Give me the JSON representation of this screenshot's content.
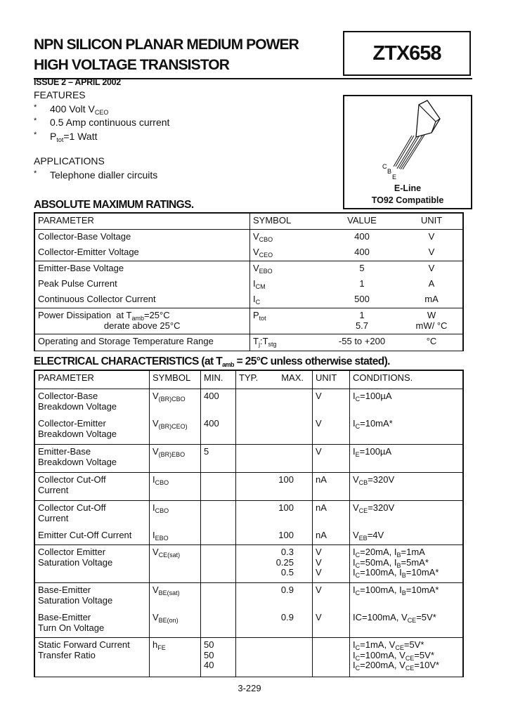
{
  "header": {
    "title_line1": "NPN SILICON PLANAR MEDIUM POWER",
    "title_line2": "HIGH VOLTAGE TRANSISTOR",
    "part_number": "ZTX658",
    "issue": "ISSUE 2 – APRIL 2002"
  },
  "features": {
    "heading": "FEATURES",
    "items": [
      [
        "400 Volt V",
        {
          "sub": "CEO"
        }
      ],
      [
        "0.5 Amp continuous current"
      ],
      [
        "P",
        {
          "sub": "tot"
        },
        "=1 Watt"
      ]
    ]
  },
  "applications": {
    "heading": "APPLICATIONS",
    "items": [
      [
        "Telephone dialler circuits"
      ]
    ]
  },
  "package": {
    "pin_labels": [
      "C",
      "B",
      "E"
    ],
    "name": "E-Line",
    "compat": "TO92 Compatible"
  },
  "abs_max": {
    "heading": "ABSOLUTE MAXIMUM RATINGS.",
    "columns": [
      "PARAMETER",
      "SYMBOL",
      "VALUE",
      "UNIT"
    ],
    "groups": [
      [
        {
          "parameter": [
            "Collector-Base Voltage"
          ],
          "symbol": [
            [
              "V",
              {
                "sub": "CBO"
              }
            ]
          ],
          "value": [
            "400"
          ],
          "unit": [
            "V"
          ]
        },
        {
          "parameter": [
            "Collector-Emitter Voltage"
          ],
          "symbol": [
            [
              "V",
              {
                "sub": "CEO"
              }
            ]
          ],
          "value": [
            "400"
          ],
          "unit": [
            "V"
          ]
        }
      ],
      [
        {
          "parameter": [
            "Emitter-Base Voltage"
          ],
          "symbol": [
            [
              "V",
              {
                "sub": "EBO"
              }
            ]
          ],
          "value": [
            "5"
          ],
          "unit": [
            "V"
          ]
        },
        {
          "parameter": [
            "Peak Pulse Current"
          ],
          "symbol": [
            [
              "I",
              {
                "sub": "CM"
              }
            ]
          ],
          "value": [
            "1"
          ],
          "unit": [
            "A"
          ]
        },
        {
          "parameter": [
            "Continuous Collector Current"
          ],
          "symbol": [
            [
              "I",
              {
                "sub": "C"
              }
            ]
          ],
          "value": [
            "500"
          ],
          "unit": [
            "mA"
          ]
        }
      ],
      [
        {
          "parameter": [
            [
              "Power Dissipation  at T",
              {
                "sub": "amb"
              },
              "=25°C"
            ],
            "                          derate above 25°C"
          ],
          "symbol": [
            [
              "P",
              {
                "sub": "tot"
              }
            ]
          ],
          "value": [
            "1",
            "5.7"
          ],
          "unit": [
            "W",
            "mW/ °C"
          ]
        }
      ],
      [
        {
          "parameter": [
            "Operating and Storage Temperature Range"
          ],
          "symbol": [
            [
              "T",
              {
                "sub": "j"
              },
              ":T",
              {
                "sub": "stg"
              }
            ]
          ],
          "value": [
            "-55 to +200"
          ],
          "unit": [
            "°C"
          ]
        }
      ]
    ]
  },
  "electrical": {
    "heading": [
      "ELECTRICAL CHARACTERISTICS (at T",
      {
        "sub": "amb"
      },
      " = 25°C unless otherwise stated)."
    ],
    "columns": [
      "PARAMETER",
      "SYMBOL",
      "MIN.",
      "TYP.",
      "MAX.",
      "UNIT",
      "CONDITIONS."
    ],
    "groups": [
      [
        {
          "parameter": [
            "Collector-Base",
            "Breakdown Voltage"
          ],
          "symbol": [
            [
              "V",
              {
                "sub": "(BR)CBO"
              }
            ]
          ],
          "min": [
            "400"
          ],
          "typ": [],
          "max": [],
          "unit": [
            "V"
          ],
          "conditions": [
            [
              "I",
              {
                "sub": "C"
              },
              "=100µA"
            ]
          ]
        },
        {
          "parameter": [
            "Collector-Emitter",
            "Breakdown Voltage"
          ],
          "symbol": [
            [
              "V",
              {
                "sub": "(BR)CEO)"
              }
            ]
          ],
          "min": [
            "400"
          ],
          "typ": [],
          "max": [],
          "unit": [
            "V"
          ],
          "conditions": [
            [
              "I",
              {
                "sub": "C"
              },
              "=10mA*"
            ]
          ]
        }
      ],
      [
        {
          "parameter": [
            "Emitter-Base",
            "Breakdown Voltage"
          ],
          "symbol": [
            [
              "V",
              {
                "sub": "(BR)EBO"
              }
            ]
          ],
          "min": [
            "5"
          ],
          "typ": [],
          "max": [],
          "unit": [
            "V"
          ],
          "conditions": [
            [
              "I",
              {
                "sub": "E"
              },
              "=100µA"
            ]
          ]
        }
      ],
      [
        {
          "parameter": [
            "Collector Cut-Off",
            "Current"
          ],
          "symbol": [
            [
              "I",
              {
                "sub": "CBO"
              }
            ]
          ],
          "min": [],
          "typ": [],
          "max": [
            "100"
          ],
          "unit": [
            "nA"
          ],
          "conditions": [
            [
              "V",
              {
                "sub": "CB"
              },
              "=320V"
            ]
          ]
        }
      ],
      [
        {
          "parameter": [
            "Collector Cut-Off",
            "Current"
          ],
          "symbol": [
            [
              "I",
              {
                "sub": "CBO"
              }
            ]
          ],
          "min": [],
          "typ": [],
          "max": [
            "100"
          ],
          "unit": [
            "nA"
          ],
          "conditions": [
            [
              "V",
              {
                "sub": "CE"
              },
              "=320V"
            ]
          ]
        },
        {
          "parameter": [
            "Emitter Cut-Off Current"
          ],
          "symbol": [
            [
              "I",
              {
                "sub": "EBO"
              }
            ]
          ],
          "min": [],
          "typ": [],
          "max": [
            "100"
          ],
          "unit": [
            "nA"
          ],
          "conditions": [
            [
              "V",
              {
                "sub": "EB"
              },
              "=4V"
            ]
          ]
        }
      ],
      [
        {
          "parameter": [
            "Collector Emitter",
            "Saturation Voltage"
          ],
          "symbol": [
            [
              "V",
              {
                "sub": "CE(sat)"
              }
            ]
          ],
          "min": [],
          "typ": [],
          "max": [
            "0.3",
            "0.25",
            "0.5"
          ],
          "unit": [
            "V",
            "V",
            "V"
          ],
          "conditions": [
            [
              "I",
              {
                "sub": "C"
              },
              "=20mA, I",
              {
                "sub": "B"
              },
              "=1mA"
            ],
            [
              "I",
              {
                "sub": "C"
              },
              "=50mA, I",
              {
                "sub": "B"
              },
              "=5mA*"
            ],
            [
              "I",
              {
                "sub": "C"
              },
              "=100mA, I",
              {
                "sub": "B"
              },
              "=10mA*"
            ]
          ]
        }
      ],
      [
        {
          "parameter": [
            "Base-Emitter",
            "Saturation Voltage"
          ],
          "symbol": [
            [
              "V",
              {
                "sub": "BE(sat)"
              }
            ]
          ],
          "min": [],
          "typ": [],
          "max": [
            "0.9"
          ],
          "unit": [
            "V"
          ],
          "conditions": [
            [
              "I",
              {
                "sub": "C"
              },
              "=100mA, I",
              {
                "sub": "B"
              },
              "=10mA*"
            ]
          ]
        },
        {
          "parameter": [
            "Base-Emitter",
            "Turn On Voltage"
          ],
          "symbol": [
            [
              "V",
              {
                "sub": "BE(on)"
              }
            ]
          ],
          "min": [],
          "typ": [],
          "max": [
            "0.9"
          ],
          "unit": [
            "V"
          ],
          "conditions": [
            [
              "IC=100mA, V",
              {
                "sub": "CE"
              },
              "=5V*"
            ]
          ]
        }
      ],
      [
        {
          "parameter": [
            "Static Forward Current",
            "Transfer Ratio"
          ],
          "symbol": [
            [
              "h",
              {
                "sub": "FE"
              }
            ]
          ],
          "min": [
            "50",
            "50",
            "40"
          ],
          "typ": [],
          "max": [],
          "unit": [],
          "conditions": [
            [
              "I",
              {
                "sub": "C"
              },
              "=1mA, V",
              {
                "sub": "CE"
              },
              "=5V*"
            ],
            [
              "I",
              {
                "sub": "C"
              },
              "=100mA, V",
              {
                "sub": "CE"
              },
              "=5V*"
            ],
            [
              "I",
              {
                "sub": "C"
              },
              "=200mA, V",
              {
                "sub": "CE"
              },
              "=10V*"
            ]
          ]
        }
      ]
    ]
  },
  "footer": {
    "page_number": "3-229"
  }
}
